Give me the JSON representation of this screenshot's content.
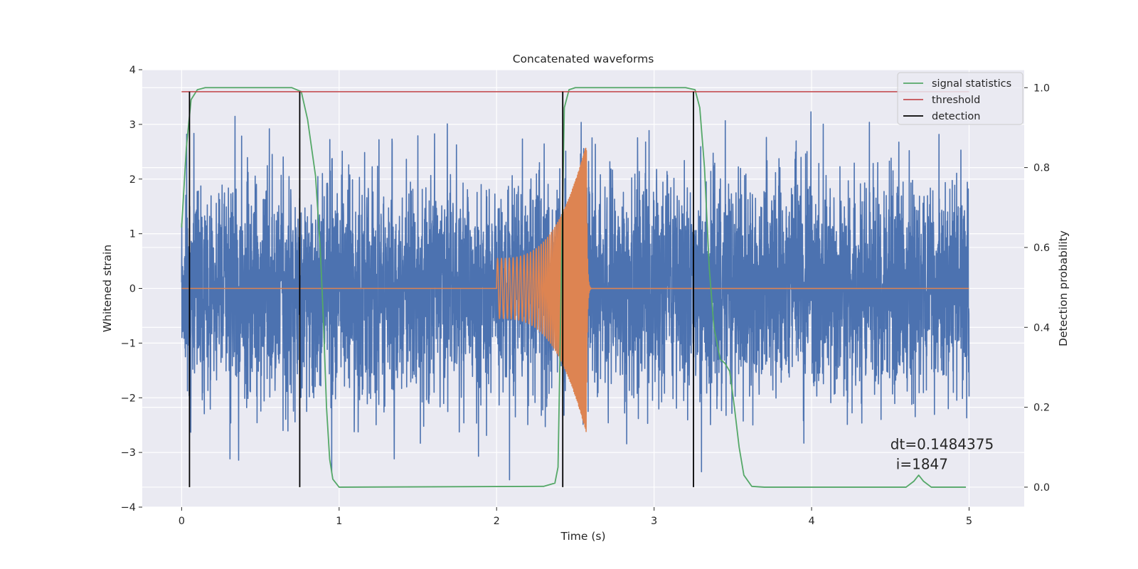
{
  "chart_data": {
    "type": "line",
    "title": "Concatenated waveforms",
    "xlabel": "Time (s)",
    "ylabel": "Whitened strain",
    "y2label": "Detection probability",
    "xlim": [
      -0.25,
      5.35
    ],
    "ylim": [
      -4,
      4
    ],
    "y2lim": [
      -0.05,
      1.045
    ],
    "x_ticks": [
      0,
      1,
      2,
      3,
      4,
      5
    ],
    "x_tick_labels": [
      "0",
      "1",
      "2",
      "3",
      "4",
      "5"
    ],
    "y_ticks": [
      -4,
      -3,
      -2,
      -1,
      0,
      1,
      2,
      3,
      4
    ],
    "y_tick_labels": [
      "−4",
      "−3",
      "−2",
      "−1",
      "0",
      "1",
      "2",
      "3",
      "4"
    ],
    "y2_ticks": [
      0.0,
      0.2,
      0.4,
      0.6,
      0.8,
      1.0
    ],
    "y2_tick_labels": [
      "0.0",
      "0.2",
      "0.4",
      "0.6",
      "0.8",
      "1.0"
    ],
    "grid": true,
    "legend_position": "top-right",
    "series": [
      {
        "name": "",
        "kind": "noise",
        "color": "#4c72b0",
        "x_range": [
          0,
          5
        ],
        "typical_amplitude": 1.0,
        "max_abs": 3.6
      },
      {
        "name": "",
        "kind": "chirp",
        "color": "#dd8452",
        "x_range": [
          2.0,
          2.6
        ],
        "start_amplitude": 0.55,
        "peak_amplitude": 2.65,
        "peak_time": 2.57,
        "min_value": -3.0
      },
      {
        "name": "signal statistics",
        "color": "#55a868",
        "axis": "right",
        "points": [
          [
            0.0,
            0.65
          ],
          [
            0.03,
            0.85
          ],
          [
            0.06,
            0.97
          ],
          [
            0.1,
            0.995
          ],
          [
            0.15,
            1.0
          ],
          [
            0.7,
            1.0
          ],
          [
            0.76,
            0.99
          ],
          [
            0.8,
            0.92
          ],
          [
            0.85,
            0.78
          ],
          [
            0.88,
            0.6
          ],
          [
            0.9,
            0.42
          ],
          [
            0.92,
            0.2
          ],
          [
            0.94,
            0.07
          ],
          [
            0.96,
            0.02
          ],
          [
            1.0,
            0.0
          ],
          [
            2.3,
            0.002
          ],
          [
            2.37,
            0.01
          ],
          [
            2.39,
            0.05
          ],
          [
            2.41,
            0.5
          ],
          [
            2.43,
            0.95
          ],
          [
            2.46,
            0.995
          ],
          [
            2.5,
            1.0
          ],
          [
            3.2,
            1.0
          ],
          [
            3.26,
            0.995
          ],
          [
            3.29,
            0.95
          ],
          [
            3.32,
            0.8
          ],
          [
            3.35,
            0.55
          ],
          [
            3.38,
            0.4
          ],
          [
            3.42,
            0.32
          ],
          [
            3.45,
            0.31
          ],
          [
            3.48,
            0.29
          ],
          [
            3.51,
            0.2
          ],
          [
            3.54,
            0.1
          ],
          [
            3.57,
            0.03
          ],
          [
            3.62,
            0.002
          ],
          [
            3.7,
            0.0
          ],
          [
            4.6,
            0.0
          ],
          [
            4.65,
            0.015
          ],
          [
            4.68,
            0.03
          ],
          [
            4.71,
            0.015
          ],
          [
            4.76,
            0.0
          ],
          [
            4.98,
            0.0
          ]
        ]
      },
      {
        "name": "threshold",
        "color": "#c44e52",
        "axis": "right",
        "x": [
          0,
          5
        ],
        "value": 0.99
      },
      {
        "name": "detection",
        "color": "#000000",
        "axis": "right",
        "x": [
          0.05,
          0.75,
          2.42,
          3.25
        ],
        "range": [
          0.0,
          0.99
        ]
      }
    ],
    "annotation": {
      "line1": "dt=0.1484375",
      "line2": "i=1847",
      "x": 4.5,
      "y": -2.9
    }
  }
}
